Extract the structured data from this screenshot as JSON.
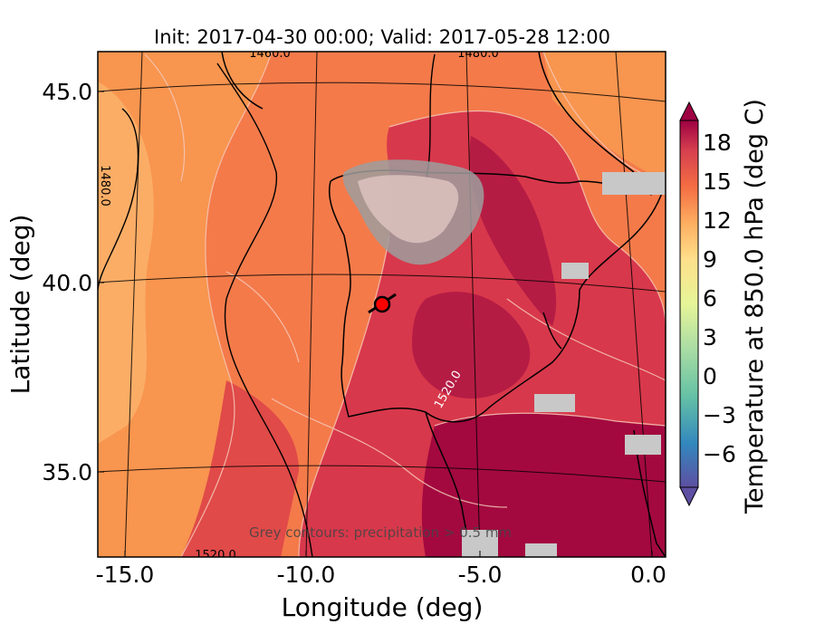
{
  "title": "Init: 2017-04-30 00:00; Valid: 2017-05-28 12:00",
  "xlabel": "Longitude (deg)",
  "ylabel": "Latitude (deg)",
  "colorbar_label": "Temperature at 850.0 hPa (deg C)",
  "footnote": "Grey contours: precipitation > 0.5 mm",
  "x_ticks": [
    {
      "label": "-15.0"
    },
    {
      "label": "-10.0"
    },
    {
      "label": "-5.0"
    },
    {
      "label": "0.0"
    }
  ],
  "y_ticks": [
    {
      "label": "45.0"
    },
    {
      "label": "40.0"
    },
    {
      "label": "35.0"
    }
  ],
  "colorbar_ticks": [
    {
      "label": "18"
    },
    {
      "label": "15"
    },
    {
      "label": "12"
    },
    {
      "label": "9"
    },
    {
      "label": "6"
    },
    {
      "label": "3"
    },
    {
      "label": "0"
    },
    {
      "label": "−3"
    },
    {
      "label": "−6"
    }
  ],
  "contour_labels": [
    {
      "text": "1460.0"
    },
    {
      "text": "1480.0"
    },
    {
      "text": "1480.0"
    },
    {
      "text": "1520.0"
    },
    {
      "text": "1520.0"
    }
  ],
  "marker": {
    "lon": -7.6,
    "lat": 39.3
  },
  "colors": {
    "sea_orange": "#f47a4a",
    "light_orange": "#f9a45e",
    "red": "#d8384b",
    "dark_red": "#a3093f",
    "precip_grey": "#c8c8c8"
  }
}
